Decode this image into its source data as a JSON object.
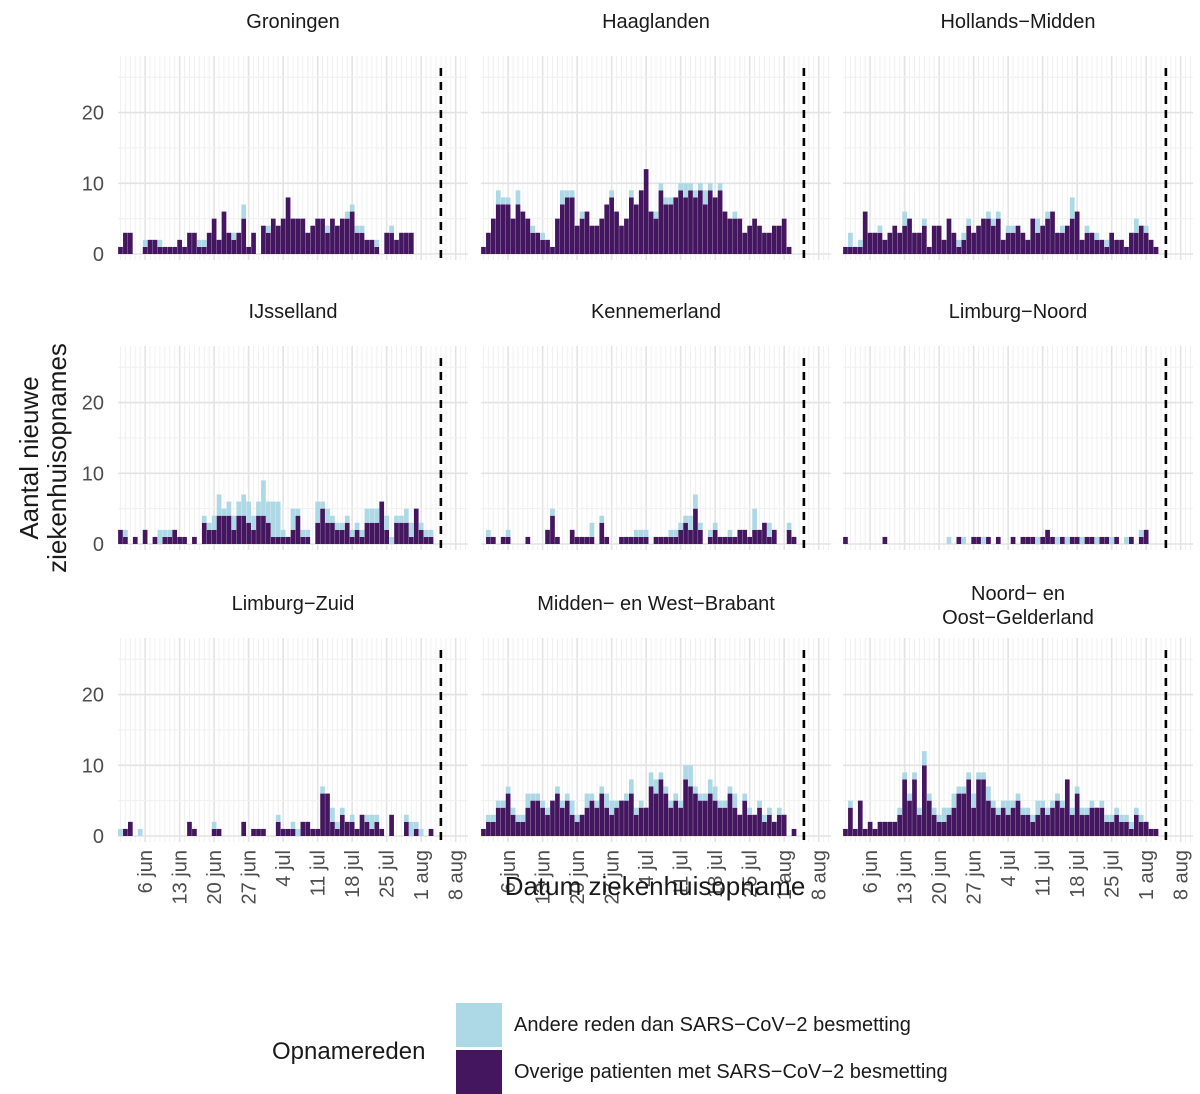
{
  "chart_data": {
    "type": "bar",
    "stacked": true,
    "facet_layout": "3x3",
    "xlabel": "Datum ziekenhuisopname",
    "ylabel": "Aantal nieuwe ziekenhuisopnames",
    "x_tick_labels": [
      "6 jun",
      "13 jun",
      "20 jun",
      "27 jun",
      "4 jul",
      "11 jul",
      "18 jul",
      "25 jul",
      "1 aug",
      "8 aug"
    ],
    "y_ticks": [
      0,
      10,
      20
    ],
    "ylim": [
      0,
      28
    ],
    "x_days": "1 jun to 10 aug",
    "reference_line_date": "5 aug",
    "legend": {
      "title": "Opnamereden",
      "entries": [
        {
          "name": "Andere reden dan SARS−CoV−2 besmetting",
          "color": "#add8e6"
        },
        {
          "name": "Overige patienten met SARS−CoV−2 besmetting",
          "color": "#44165f"
        }
      ]
    },
    "panels": [
      {
        "title": "Groningen",
        "covid": [
          1,
          3,
          3,
          0,
          0,
          1,
          2,
          2,
          1,
          1,
          1,
          1,
          2,
          1,
          3,
          3,
          1,
          1,
          3,
          5,
          2,
          6,
          3,
          2,
          3,
          5,
          1,
          3,
          0,
          4,
          3,
          5,
          4,
          5,
          8,
          5,
          5,
          5,
          3,
          4,
          5,
          5,
          3,
          5,
          4,
          5,
          5,
          6,
          3,
          3,
          2,
          2,
          1,
          0,
          3,
          3,
          2,
          3,
          3,
          3,
          0,
          0,
          0,
          0
        ],
        "other": [
          0,
          0,
          0,
          0,
          0,
          1,
          0,
          0,
          1,
          0,
          0,
          0,
          0,
          0,
          0,
          0,
          1,
          1,
          0,
          0,
          0,
          0,
          0,
          1,
          0,
          2,
          0,
          0,
          0,
          0,
          1,
          0,
          0,
          0,
          0,
          0,
          0,
          0,
          0,
          0,
          0,
          0,
          1,
          0,
          0,
          0,
          1,
          1,
          1,
          1,
          0,
          0,
          1,
          0,
          0,
          1,
          0,
          0,
          0,
          0,
          0,
          0,
          0,
          0
        ]
      },
      {
        "title": "Haaglanden",
        "covid": [
          1,
          3,
          5,
          7,
          7,
          7,
          5,
          7,
          6,
          5,
          3,
          3,
          2,
          2,
          1,
          5,
          7,
          8,
          8,
          4,
          5,
          6,
          4,
          4,
          5,
          7,
          8,
          6,
          4,
          5,
          8,
          7,
          9,
          12,
          6,
          5,
          9,
          7,
          7,
          8,
          9,
          8,
          9,
          8,
          9,
          7,
          9,
          8,
          9,
          6,
          5,
          5,
          5,
          3,
          4,
          5,
          4,
          3,
          3,
          4,
          4,
          5,
          1,
          0
        ],
        "other": [
          0,
          0,
          0,
          2,
          1,
          1,
          0,
          2,
          0,
          0,
          1,
          0,
          1,
          0,
          0,
          0,
          2,
          1,
          1,
          0,
          1,
          0,
          0,
          0,
          0,
          0,
          1,
          0,
          0,
          0,
          1,
          0,
          0,
          0,
          0,
          1,
          1,
          1,
          1,
          0,
          1,
          2,
          1,
          1,
          1,
          2,
          1,
          0,
          1,
          0,
          0,
          1,
          0,
          0,
          0,
          0,
          0,
          0,
          0,
          0,
          0,
          0,
          0,
          0
        ]
      },
      {
        "title": "Hollands−Midden",
        "covid": [
          1,
          1,
          1,
          1,
          6,
          3,
          3,
          3,
          2,
          3,
          4,
          3,
          4,
          5,
          3,
          3,
          4,
          1,
          4,
          4,
          2,
          5,
          3,
          1,
          2,
          4,
          3,
          4,
          5,
          5,
          4,
          5,
          2,
          3,
          3,
          4,
          3,
          2,
          5,
          3,
          4,
          5,
          6,
          3,
          3,
          4,
          5,
          6,
          2,
          3,
          3,
          2,
          2,
          1,
          3,
          2,
          2,
          1,
          3,
          3,
          4,
          3,
          2,
          1
        ],
        "other": [
          0,
          2,
          0,
          1,
          0,
          0,
          0,
          1,
          0,
          0,
          0,
          0,
          2,
          0,
          0,
          0,
          1,
          0,
          0,
          0,
          0,
          0,
          0,
          1,
          1,
          1,
          0,
          0,
          0,
          1,
          1,
          1,
          0,
          1,
          1,
          0,
          0,
          0,
          0,
          2,
          0,
          1,
          0,
          0,
          1,
          0,
          3,
          0,
          0,
          1,
          0,
          1,
          0,
          1,
          0,
          0,
          0,
          0,
          0,
          2,
          0,
          1,
          0,
          0
        ]
      },
      {
        "title": "IJsselland",
        "covid": [
          2,
          1,
          0,
          1,
          0,
          2,
          0,
          1,
          0,
          1,
          1,
          2,
          1,
          1,
          0,
          1,
          0,
          3,
          2,
          2,
          4,
          4,
          4,
          2,
          4,
          4,
          3,
          2,
          4,
          4,
          3,
          1,
          1,
          1,
          1,
          2,
          4,
          1,
          1,
          0,
          3,
          5,
          3,
          3,
          2,
          2,
          3,
          1,
          2,
          1,
          3,
          3,
          3,
          6,
          2,
          0,
          3,
          3,
          3,
          1,
          5,
          2,
          1,
          1
        ],
        "other": [
          0,
          1,
          0,
          0,
          0,
          0,
          0,
          0,
          2,
          1,
          1,
          0,
          0,
          0,
          0,
          0,
          0,
          1,
          1,
          2,
          3,
          1,
          2,
          2,
          2,
          3,
          3,
          2,
          2,
          5,
          3,
          5,
          5,
          1,
          0,
          3,
          1,
          1,
          1,
          0,
          3,
          1,
          2,
          1,
          1,
          1,
          1,
          1,
          1,
          1,
          2,
          2,
          2,
          0,
          2,
          1,
          1,
          1,
          2,
          2,
          0,
          1,
          1,
          1
        ]
      },
      {
        "title": "Kennemerland",
        "covid": [
          0,
          1,
          1,
          0,
          1,
          1,
          0,
          0,
          0,
          1,
          0,
          0,
          0,
          2,
          4,
          1,
          0,
          0,
          2,
          1,
          1,
          1,
          1,
          0,
          3,
          1,
          0,
          0,
          1,
          1,
          1,
          1,
          1,
          1,
          0,
          1,
          1,
          1,
          1,
          1,
          2,
          3,
          2,
          5,
          2,
          0,
          1,
          2,
          1,
          1,
          1,
          1,
          2,
          2,
          1,
          2,
          2,
          3,
          1,
          2,
          0,
          0,
          2,
          1
        ],
        "other": [
          0,
          1,
          0,
          0,
          0,
          1,
          0,
          0,
          0,
          0,
          0,
          0,
          0,
          0,
          1,
          0,
          0,
          0,
          0,
          0,
          0,
          0,
          2,
          0,
          1,
          0,
          0,
          0,
          0,
          0,
          0,
          1,
          1,
          1,
          0,
          0,
          0,
          0,
          1,
          1,
          1,
          1,
          2,
          2,
          1,
          0,
          1,
          1,
          0,
          0,
          1,
          0,
          0,
          0,
          0,
          3,
          0,
          0,
          2,
          0,
          0,
          0,
          1,
          0
        ]
      },
      {
        "title": "Limburg−Noord",
        "covid": [
          1,
          0,
          0,
          0,
          0,
          0,
          0,
          0,
          1,
          0,
          0,
          0,
          0,
          0,
          0,
          0,
          0,
          0,
          0,
          0,
          0,
          0,
          0,
          1,
          0,
          0,
          1,
          1,
          0,
          1,
          0,
          1,
          0,
          0,
          1,
          0,
          1,
          1,
          1,
          0,
          1,
          2,
          1,
          0,
          1,
          0,
          1,
          1,
          0,
          1,
          1,
          0,
          1,
          1,
          0,
          1,
          0,
          0,
          1,
          0,
          1,
          2,
          0,
          0
        ],
        "other": [
          0,
          0,
          0,
          0,
          0,
          0,
          0,
          0,
          0,
          0,
          0,
          0,
          0,
          0,
          0,
          0,
          0,
          0,
          0,
          0,
          0,
          1,
          0,
          0,
          1,
          0,
          0,
          0,
          1,
          0,
          0,
          0,
          0,
          0,
          0,
          0,
          0,
          0,
          0,
          1,
          0,
          0,
          0,
          1,
          0,
          1,
          0,
          0,
          1,
          0,
          0,
          1,
          0,
          0,
          1,
          0,
          0,
          1,
          0,
          0,
          1,
          0,
          0,
          0
        ]
      },
      {
        "title": "Limburg−Zuid",
        "covid": [
          0,
          1,
          2,
          0,
          0,
          0,
          0,
          0,
          0,
          0,
          0,
          0,
          0,
          0,
          2,
          1,
          0,
          0,
          0,
          1,
          1,
          0,
          0,
          0,
          0,
          2,
          0,
          1,
          1,
          1,
          0,
          0,
          2,
          1,
          1,
          1,
          0,
          2,
          2,
          1,
          1,
          6,
          6,
          2,
          1,
          3,
          2,
          2,
          1,
          3,
          2,
          1,
          2,
          1,
          0,
          3,
          0,
          0,
          2,
          0,
          1,
          0,
          0,
          1
        ],
        "other": [
          1,
          0,
          0,
          0,
          1,
          0,
          0,
          0,
          0,
          0,
          0,
          0,
          0,
          0,
          0,
          0,
          0,
          0,
          0,
          1,
          0,
          0,
          0,
          0,
          0,
          0,
          0,
          0,
          0,
          0,
          0,
          0,
          1,
          0,
          0,
          1,
          1,
          0,
          0,
          0,
          0,
          1,
          0,
          2,
          1,
          1,
          0,
          1,
          0,
          0,
          1,
          2,
          1,
          0,
          0,
          0,
          0,
          0,
          1,
          2,
          1,
          1,
          0,
          0
        ]
      },
      {
        "title": "Midden− en West−Brabant",
        "covid": [
          1,
          2,
          2,
          4,
          4,
          6,
          3,
          2,
          2,
          4,
          5,
          5,
          4,
          3,
          5,
          6,
          4,
          5,
          3,
          2,
          3,
          4,
          5,
          4,
          6,
          4,
          3,
          4,
          5,
          5,
          6,
          3,
          4,
          4,
          7,
          6,
          8,
          6,
          4,
          5,
          4,
          8,
          7,
          6,
          5,
          5,
          6,
          5,
          4,
          4,
          6,
          4,
          3,
          5,
          3,
          3,
          4,
          2,
          3,
          2,
          3,
          3,
          0,
          1
        ],
        "other": [
          0,
          1,
          1,
          1,
          1,
          1,
          1,
          1,
          1,
          2,
          1,
          1,
          1,
          1,
          0,
          1,
          1,
          1,
          2,
          1,
          0,
          2,
          1,
          1,
          1,
          2,
          2,
          1,
          0,
          1,
          2,
          1,
          1,
          0,
          2,
          2,
          1,
          1,
          1,
          1,
          1,
          2,
          3,
          1,
          1,
          1,
          2,
          2,
          1,
          1,
          1,
          2,
          0,
          1,
          1,
          0,
          1,
          1,
          1,
          0,
          1,
          0,
          0,
          0
        ]
      },
      {
        "title": "Noord− en Oost−Gelderland",
        "covid": [
          1,
          4,
          1,
          5,
          1,
          2,
          1,
          2,
          2,
          2,
          2,
          3,
          8,
          5,
          8,
          3,
          10,
          5,
          3,
          2,
          2,
          3,
          4,
          6,
          6,
          8,
          4,
          8,
          8,
          5,
          4,
          3,
          4,
          3,
          4,
          5,
          3,
          3,
          2,
          3,
          4,
          3,
          4,
          5,
          4,
          8,
          3,
          6,
          3,
          3,
          4,
          4,
          4,
          2,
          2,
          3,
          2,
          2,
          1,
          3,
          2,
          2,
          1,
          1
        ],
        "other": [
          0,
          1,
          0,
          0,
          0,
          0,
          0,
          0,
          0,
          0,
          0,
          1,
          1,
          1,
          1,
          1,
          2,
          1,
          1,
          1,
          2,
          1,
          2,
          1,
          1,
          1,
          2,
          1,
          1,
          2,
          1,
          1,
          1,
          2,
          1,
          1,
          1,
          1,
          1,
          2,
          1,
          1,
          1,
          1,
          1,
          0,
          1,
          1,
          1,
          1,
          1,
          0,
          1,
          1,
          1,
          1,
          1,
          1,
          1,
          1,
          1,
          0,
          0,
          0
        ]
      }
    ]
  }
}
